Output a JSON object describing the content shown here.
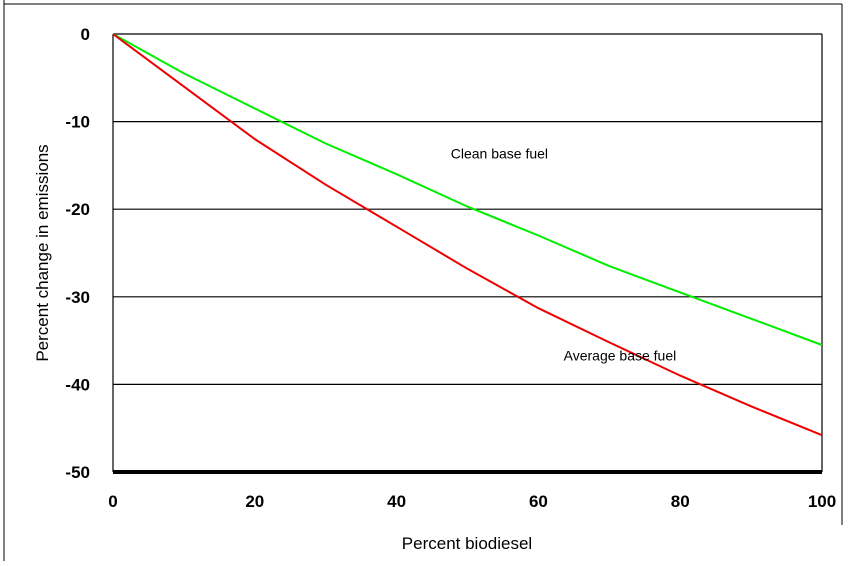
{
  "chart_data": {
    "type": "line",
    "title": "",
    "xlabel": "Percent biodiesel",
    "ylabel": "Percent change in emissions",
    "xlim": [
      0,
      100
    ],
    "ylim": [
      -50,
      0
    ],
    "xticks": [
      0,
      20,
      40,
      60,
      80,
      100
    ],
    "yticks": [
      0,
      -10,
      -20,
      -30,
      -40,
      -50
    ],
    "grid": "horizontal",
    "legend": "none",
    "series": [
      {
        "name": "Clean base fuel",
        "color": "#00ee00",
        "x": [
          0,
          10,
          20,
          30,
          40,
          50,
          60,
          70,
          80,
          90,
          100
        ],
        "y": [
          0,
          -4.5,
          -8.5,
          -12.5,
          -16,
          -19.7,
          -23,
          -26.5,
          -29.5,
          -32.5,
          -35.5
        ]
      },
      {
        "name": "Average base fuel",
        "color": "#ee0000",
        "x": [
          0,
          10,
          20,
          30,
          40,
          50,
          60,
          70,
          80,
          90,
          100
        ],
        "y": [
          0,
          -6,
          -12,
          -17.2,
          -22,
          -26.8,
          -31.3,
          -35.2,
          -39,
          -42.5,
          -45.8
        ]
      }
    ],
    "annotations": [
      {
        "text": "Clean base fuel",
        "x": 54.5,
        "y": -14.2
      },
      {
        "text": "Average base fuel",
        "x": 71.5,
        "y": -37.3
      }
    ]
  }
}
